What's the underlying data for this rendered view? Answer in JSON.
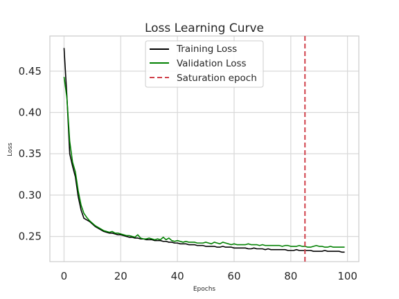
{
  "chart_data": {
    "type": "line",
    "title": "Loss Learning Curve",
    "xlabel": "Epochs",
    "ylabel": "Loss",
    "xlim": [
      -5,
      104
    ],
    "ylim": [
      0.2195,
      0.4925
    ],
    "xticks": [
      0,
      20,
      40,
      60,
      80,
      100
    ],
    "yticks": [
      0.25,
      0.3,
      0.35,
      0.4,
      0.45
    ],
    "ytick_labels": [
      "0.25",
      "0.30",
      "0.35",
      "0.40",
      "0.45"
    ],
    "grid": true,
    "legend_position": "top-center",
    "series": [
      {
        "name": "Training Loss",
        "color": "#000000",
        "x": [
          0,
          1,
          2,
          3,
          4,
          5,
          6,
          7,
          8,
          9,
          10,
          11,
          12,
          13,
          14,
          15,
          16,
          17,
          18,
          19,
          20,
          21,
          22,
          23,
          24,
          25,
          26,
          27,
          28,
          29,
          30,
          31,
          32,
          33,
          34,
          35,
          36,
          37,
          38,
          39,
          40,
          41,
          42,
          43,
          44,
          45,
          46,
          47,
          48,
          49,
          50,
          51,
          52,
          53,
          54,
          55,
          56,
          57,
          58,
          59,
          60,
          61,
          62,
          63,
          64,
          65,
          66,
          67,
          68,
          69,
          70,
          71,
          72,
          73,
          74,
          75,
          76,
          77,
          78,
          79,
          80,
          81,
          82,
          83,
          84,
          85,
          86,
          87,
          88,
          89,
          90,
          91,
          92,
          93,
          94,
          95,
          96,
          97,
          98,
          99
        ],
        "values": [
          0.478,
          0.42,
          0.35,
          0.335,
          0.322,
          0.298,
          0.282,
          0.272,
          0.27,
          0.268,
          0.265,
          0.262,
          0.26,
          0.258,
          0.256,
          0.255,
          0.254,
          0.254,
          0.253,
          0.252,
          0.252,
          0.251,
          0.25,
          0.249,
          0.249,
          0.248,
          0.248,
          0.247,
          0.247,
          0.246,
          0.246,
          0.246,
          0.245,
          0.245,
          0.245,
          0.244,
          0.244,
          0.243,
          0.243,
          0.242,
          0.242,
          0.241,
          0.241,
          0.241,
          0.24,
          0.24,
          0.24,
          0.239,
          0.239,
          0.239,
          0.238,
          0.238,
          0.238,
          0.238,
          0.237,
          0.237,
          0.238,
          0.237,
          0.237,
          0.237,
          0.236,
          0.236,
          0.236,
          0.236,
          0.236,
          0.235,
          0.235,
          0.236,
          0.235,
          0.235,
          0.235,
          0.234,
          0.235,
          0.234,
          0.234,
          0.234,
          0.234,
          0.234,
          0.234,
          0.233,
          0.233,
          0.233,
          0.234,
          0.233,
          0.233,
          0.233,
          0.233,
          0.233,
          0.232,
          0.232,
          0.232,
          0.232,
          0.233,
          0.232,
          0.232,
          0.232,
          0.232,
          0.232,
          0.231,
          0.231
        ]
      },
      {
        "name": "Validation Loss",
        "color": "#008000",
        "x": [
          0,
          1,
          2,
          3,
          4,
          5,
          6,
          7,
          8,
          9,
          10,
          11,
          12,
          13,
          14,
          15,
          16,
          17,
          18,
          19,
          20,
          21,
          22,
          23,
          24,
          25,
          26,
          27,
          28,
          29,
          30,
          31,
          32,
          33,
          34,
          35,
          36,
          37,
          38,
          39,
          40,
          41,
          42,
          43,
          44,
          45,
          46,
          47,
          48,
          49,
          50,
          51,
          52,
          53,
          54,
          55,
          56,
          57,
          58,
          59,
          60,
          61,
          62,
          63,
          64,
          65,
          66,
          67,
          68,
          69,
          70,
          71,
          72,
          73,
          74,
          75,
          76,
          77,
          78,
          79,
          80,
          81,
          82,
          83,
          84,
          85,
          86,
          87,
          88,
          89,
          90,
          91,
          92,
          93,
          94,
          95,
          96,
          97,
          98,
          99
        ],
        "values": [
          0.443,
          0.418,
          0.365,
          0.34,
          0.328,
          0.305,
          0.288,
          0.278,
          0.273,
          0.269,
          0.266,
          0.263,
          0.261,
          0.259,
          0.257,
          0.256,
          0.255,
          0.256,
          0.254,
          0.254,
          0.253,
          0.252,
          0.251,
          0.251,
          0.25,
          0.249,
          0.252,
          0.248,
          0.247,
          0.247,
          0.248,
          0.247,
          0.246,
          0.247,
          0.246,
          0.249,
          0.246,
          0.248,
          0.245,
          0.244,
          0.245,
          0.244,
          0.243,
          0.244,
          0.243,
          0.243,
          0.243,
          0.242,
          0.242,
          0.242,
          0.243,
          0.242,
          0.241,
          0.243,
          0.242,
          0.241,
          0.243,
          0.242,
          0.241,
          0.24,
          0.241,
          0.24,
          0.24,
          0.24,
          0.24,
          0.241,
          0.24,
          0.24,
          0.24,
          0.239,
          0.24,
          0.239,
          0.239,
          0.239,
          0.239,
          0.239,
          0.239,
          0.238,
          0.239,
          0.239,
          0.238,
          0.238,
          0.238,
          0.239,
          0.238,
          0.238,
          0.237,
          0.237,
          0.238,
          0.239,
          0.238,
          0.238,
          0.237,
          0.237,
          0.238,
          0.237,
          0.237,
          0.237,
          0.237,
          0.237
        ]
      },
      {
        "name": "Saturation epoch",
        "color": "#d0404a",
        "style": "dashed",
        "vertical_line_x": 85
      }
    ]
  }
}
